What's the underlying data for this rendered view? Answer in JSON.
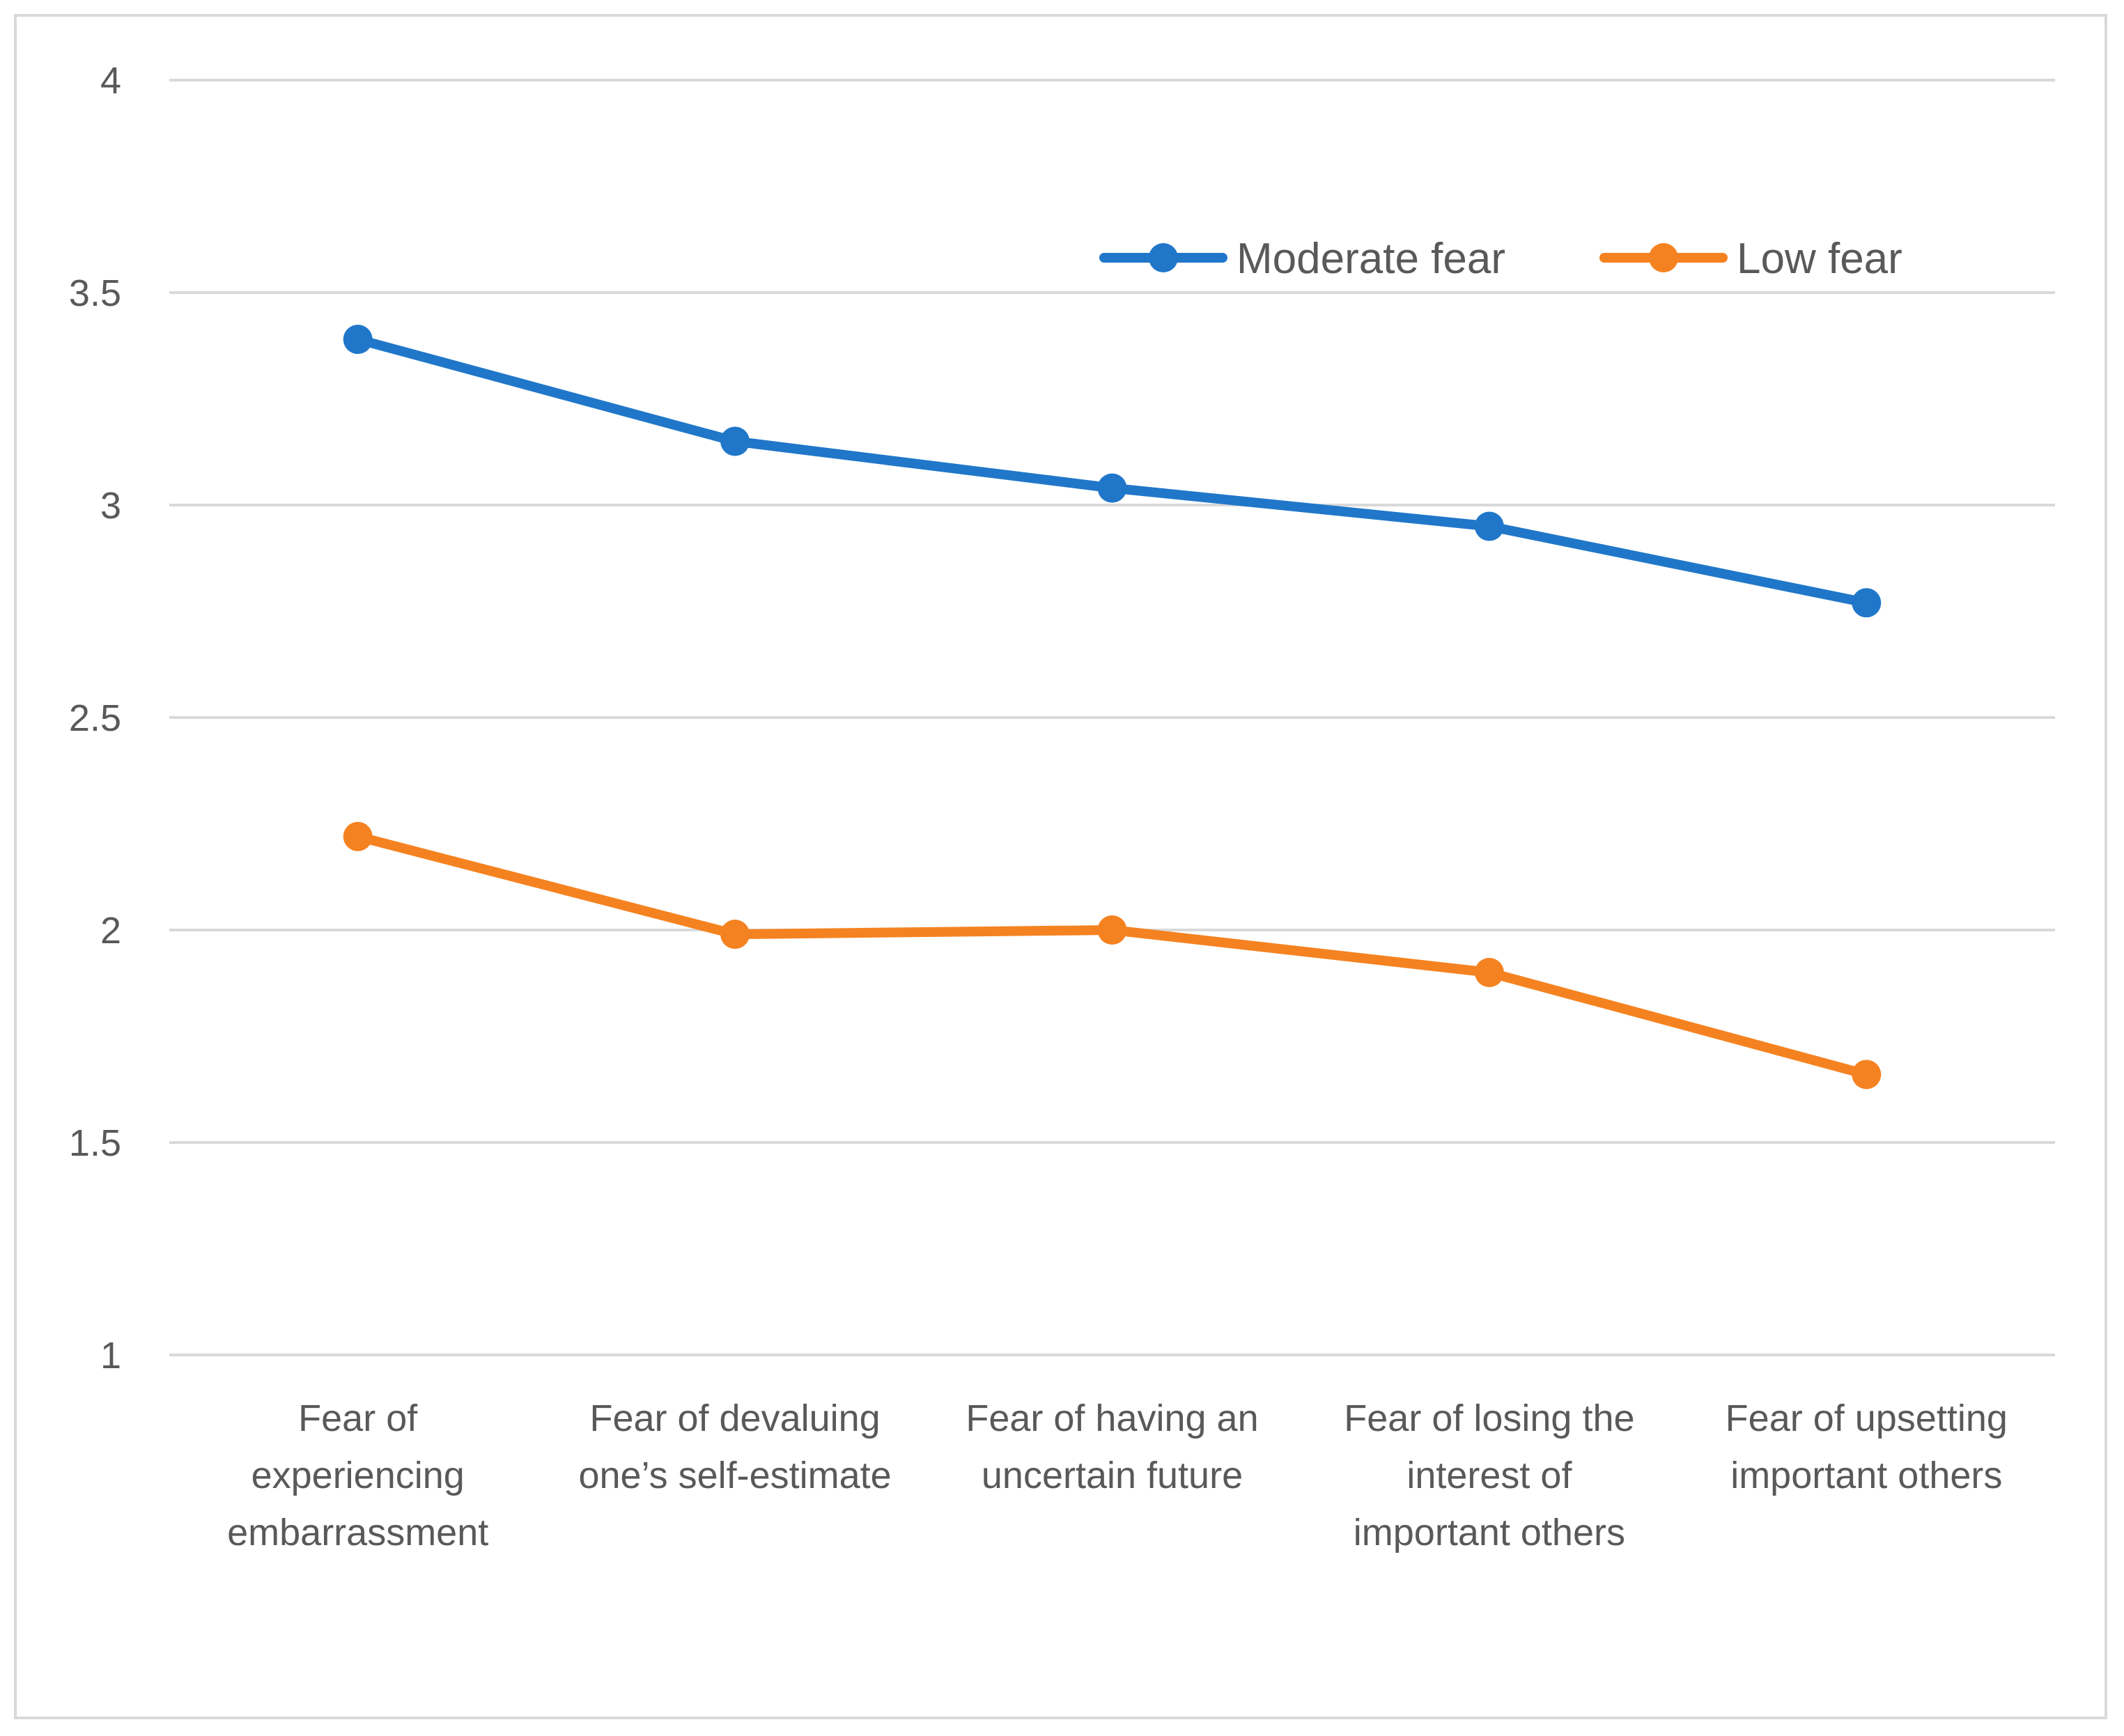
{
  "chart_data": {
    "type": "line",
    "title": "",
    "xlabel": "",
    "ylabel": "",
    "ylim": [
      1,
      4
    ],
    "yticks": [
      1,
      1.5,
      2,
      2.5,
      3,
      3.5,
      4
    ],
    "ytick_labels": [
      "1",
      "1.5",
      "2",
      "2.5",
      "3",
      "3.5",
      "4"
    ],
    "grid": true,
    "legend_position": "top-right",
    "categories": [
      [
        "Fear of",
        "experiencing",
        "embarrassment"
      ],
      [
        "Fear of devaluing",
        "one’s self-estimate"
      ],
      [
        "Fear of having an",
        "uncertain future"
      ],
      [
        "Fear of losing the",
        "interest of",
        "important others"
      ],
      [
        "Fear of upsetting",
        "important others"
      ]
    ],
    "series": [
      {
        "name": "Moderate fear",
        "color": "#2077c9",
        "values": [
          3.39,
          3.15,
          3.04,
          2.95,
          2.77
        ]
      },
      {
        "name": "Low fear",
        "color": "#f58220",
        "values": [
          2.22,
          1.99,
          2.0,
          1.9,
          1.66
        ]
      }
    ]
  }
}
